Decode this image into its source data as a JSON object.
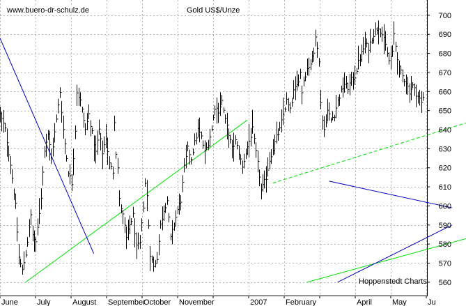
{
  "chart_data": {
    "type": "bar",
    "subtype": "ohlc-bars",
    "title": "Gold US$/Unze",
    "site": "www.buero-dr-schulz.de",
    "credit": "Hoppenstedt Charts",
    "x_labels": [
      "June",
      "July",
      "August",
      "September",
      "October",
      "November",
      "2007",
      "February",
      "April",
      "May",
      "Ju"
    ],
    "y_ticks": [
      560,
      570,
      580,
      590,
      600,
      610,
      620,
      630,
      640,
      650,
      660,
      670,
      680,
      690,
      700
    ],
    "ylim": [
      553,
      708
    ],
    "grid": true,
    "y_axis_position": "right",
    "colors": {
      "bars": "#000000",
      "grid": "#b4b4b4",
      "channel": "#00e000",
      "wedge": "#0000c0",
      "axis": "#000000"
    },
    "price_path": [
      [
        0,
        648
      ],
      [
        3,
        640
      ],
      [
        6,
        622
      ],
      [
        9,
        600
      ],
      [
        11,
        573
      ],
      [
        13,
        566
      ],
      [
        15,
        575
      ],
      [
        17,
        588
      ],
      [
        18,
        595
      ],
      [
        19,
        585
      ],
      [
        21,
        580
      ],
      [
        24,
        605
      ],
      [
        26,
        630
      ],
      [
        28,
        638
      ],
      [
        30,
        625
      ],
      [
        33,
        645
      ],
      [
        35,
        660
      ],
      [
        37,
        640
      ],
      [
        40,
        618
      ],
      [
        42,
        612
      ],
      [
        44,
        640
      ],
      [
        45,
        660
      ],
      [
        47,
        655
      ],
      [
        50,
        640
      ],
      [
        52,
        648
      ],
      [
        54,
        638
      ],
      [
        56,
        628
      ],
      [
        58,
        640
      ],
      [
        60,
        628
      ],
      [
        62,
        636
      ],
      [
        64,
        622
      ],
      [
        66,
        618
      ],
      [
        67,
        645
      ],
      [
        68,
        628
      ],
      [
        69,
        620
      ],
      [
        70,
        603
      ],
      [
        72,
        595
      ],
      [
        74,
        583
      ],
      [
        76,
        590
      ],
      [
        78,
        595
      ],
      [
        80,
        578
      ],
      [
        82,
        580
      ],
      [
        84,
        600
      ],
      [
        85,
        612
      ],
      [
        86,
        605
      ],
      [
        88,
        575
      ],
      [
        90,
        568
      ],
      [
        92,
        573
      ],
      [
        94,
        590
      ],
      [
        96,
        598
      ],
      [
        98,
        603
      ],
      [
        100,
        583
      ],
      [
        102,
        590
      ],
      [
        104,
        598
      ],
      [
        106,
        603
      ],
      [
        108,
        620
      ],
      [
        110,
        630
      ],
      [
        112,
        625
      ],
      [
        114,
        633
      ],
      [
        116,
        640
      ],
      [
        118,
        636
      ],
      [
        120,
        628
      ],
      [
        122,
        633
      ],
      [
        124,
        640
      ],
      [
        125,
        646
      ],
      [
        126,
        652
      ],
      [
        128,
        650
      ],
      [
        130,
        655
      ],
      [
        132,
        645
      ],
      [
        134,
        638
      ],
      [
        136,
        630
      ],
      [
        138,
        634
      ],
      [
        140,
        628
      ],
      [
        142,
        620
      ],
      [
        144,
        628
      ],
      [
        146,
        634
      ],
      [
        148,
        640
      ],
      [
        150,
        628
      ],
      [
        152,
        616
      ],
      [
        153,
        608
      ],
      [
        154,
        610
      ],
      [
        156,
        615
      ],
      [
        158,
        624
      ],
      [
        160,
        630
      ],
      [
        162,
        636
      ],
      [
        164,
        640
      ],
      [
        166,
        648
      ],
      [
        168,
        655
      ],
      [
        170,
        650
      ],
      [
        172,
        660
      ],
      [
        174,
        663
      ],
      [
        176,
        670
      ],
      [
        177,
        660
      ],
      [
        178,
        666
      ],
      [
        180,
        672
      ],
      [
        182,
        675
      ],
      [
        184,
        680
      ],
      [
        185,
        690
      ],
      [
        186,
        684
      ],
      [
        187,
        675
      ],
      [
        188,
        655
      ],
      [
        189,
        645
      ],
      [
        190,
        640
      ],
      [
        192,
        650
      ],
      [
        194,
        645
      ],
      [
        196,
        648
      ],
      [
        198,
        655
      ],
      [
        200,
        660
      ],
      [
        202,
        664
      ],
      [
        204,
        662
      ],
      [
        206,
        666
      ],
      [
        208,
        668
      ],
      [
        210,
        675
      ],
      [
        212,
        680
      ],
      [
        214,
        685
      ],
      [
        216,
        683
      ],
      [
        218,
        688
      ],
      [
        220,
        692
      ],
      [
        222,
        694
      ],
      [
        224,
        690
      ],
      [
        226,
        684
      ],
      [
        228,
        676
      ],
      [
        230,
        680
      ],
      [
        231,
        690
      ],
      [
        232,
        684
      ],
      [
        234,
        672
      ],
      [
        236,
        668
      ],
      [
        238,
        665
      ],
      [
        240,
        660
      ],
      [
        242,
        663
      ],
      [
        244,
        659
      ],
      [
        246,
        656
      ],
      [
        247,
        654
      ],
      [
        248,
        657
      ]
    ],
    "channel_lines": [
      {
        "style": "solid",
        "points": [
          [
            180,
            560
          ],
          [
            670,
            680
          ]
        ]
      },
      {
        "style": "dashed",
        "points": [
          [
            160,
            612
          ],
          [
            505,
            708
          ]
        ]
      },
      {
        "style": "solid",
        "points": [
          [
            15,
            560
          ],
          [
            145,
            645
          ]
        ]
      }
    ],
    "wedge_lines": [
      {
        "points": [
          [
            0,
            688
          ],
          [
            55,
            575
          ]
        ]
      },
      {
        "points": [
          [
            193,
            613
          ],
          [
            265,
            599
          ]
        ]
      },
      {
        "points": [
          [
            198,
            560
          ],
          [
            265,
            590
          ]
        ]
      }
    ]
  }
}
